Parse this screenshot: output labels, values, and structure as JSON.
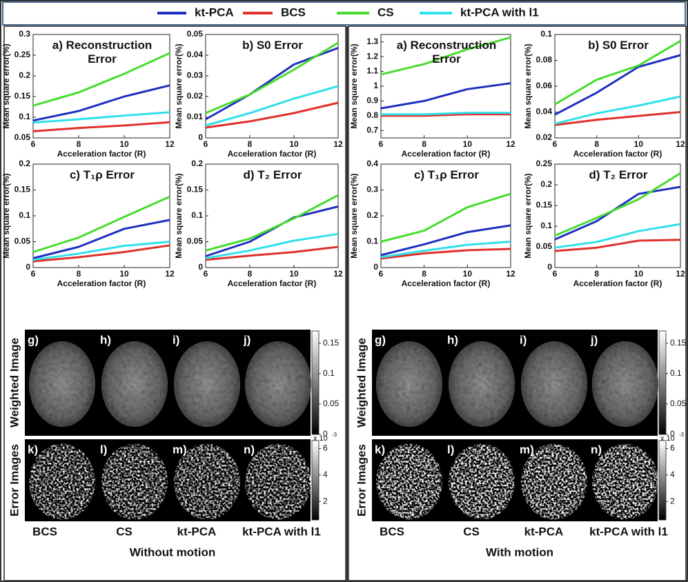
{
  "chart_data": [
    {
      "type": "line",
      "title": "a) Reconstruction Error",
      "xlabel": "Acceleration factor (R)",
      "ylabel": "Mean square error(%)",
      "x": [
        6,
        8,
        10,
        12
      ],
      "xlim": [
        6,
        12
      ],
      "xticks": [
        6,
        8,
        10,
        12
      ],
      "ylim": [
        0.05,
        0.3
      ],
      "yticks": [
        0.05,
        0.1,
        0.15,
        0.2,
        0.25,
        0.3
      ],
      "series": [
        {
          "name": "kt-PCA",
          "color": "#1f2fc0",
          "values": [
            0.092,
            0.115,
            0.15,
            0.177
          ]
        },
        {
          "name": "BCS",
          "color": "#e0302a",
          "values": [
            0.066,
            0.074,
            0.08,
            0.088
          ]
        },
        {
          "name": "CS",
          "color": "#46dc2c",
          "values": [
            0.128,
            0.16,
            0.205,
            0.255
          ]
        },
        {
          "name": "kt-PCA with l1",
          "color": "#30e0ea",
          "values": [
            0.087,
            0.095,
            0.104,
            0.112
          ]
        }
      ]
    },
    {
      "type": "line",
      "title": "b) S0 Error",
      "xlabel": "Acceleration factor (R)",
      "ylabel": "Mean square error(%)",
      "x": [
        6,
        8,
        10,
        12
      ],
      "xlim": [
        6,
        12
      ],
      "xticks": [
        6,
        8,
        10,
        12
      ],
      "ylim": [
        0,
        0.05
      ],
      "yticks": [
        0,
        0.01,
        0.02,
        0.03,
        0.04,
        0.05
      ],
      "series": [
        {
          "name": "kt-PCA",
          "color": "#1f2fc0",
          "values": [
            0.009,
            0.021,
            0.0355,
            0.0435
          ]
        },
        {
          "name": "BCS",
          "color": "#e0302a",
          "values": [
            0.005,
            0.008,
            0.012,
            0.017
          ]
        },
        {
          "name": "CS",
          "color": "#46dc2c",
          "values": [
            0.012,
            0.021,
            0.033,
            0.046
          ]
        },
        {
          "name": "kt-PCA with l1",
          "color": "#30e0ea",
          "values": [
            0.006,
            0.012,
            0.019,
            0.025
          ]
        }
      ]
    },
    {
      "type": "line",
      "title": "c) T₁ρ Error",
      "xlabel": "Acceleration factor (R)",
      "ylabel": "Mean square error(%)",
      "x": [
        6,
        8,
        10,
        12
      ],
      "xlim": [
        6,
        12
      ],
      "xticks": [
        6,
        8,
        10,
        12
      ],
      "ylim": [
        0,
        0.2
      ],
      "yticks": [
        0,
        0.05,
        0.1,
        0.15,
        0.2
      ],
      "series": [
        {
          "name": "kt-PCA",
          "color": "#1f2fc0",
          "values": [
            0.018,
            0.04,
            0.075,
            0.092
          ]
        },
        {
          "name": "BCS",
          "color": "#e0302a",
          "values": [
            0.012,
            0.02,
            0.03,
            0.043
          ]
        },
        {
          "name": "CS",
          "color": "#46dc2c",
          "values": [
            0.03,
            0.058,
            0.098,
            0.137
          ]
        },
        {
          "name": "kt-PCA with l1",
          "color": "#30e0ea",
          "values": [
            0.015,
            0.027,
            0.042,
            0.05
          ]
        }
      ]
    },
    {
      "type": "line",
      "title": "d) T₂ Error",
      "xlabel": "Acceleration factor (R)",
      "ylabel": "Mean square error(%)",
      "x": [
        6,
        8,
        10,
        12
      ],
      "xlim": [
        6,
        12
      ],
      "xticks": [
        6,
        8,
        10,
        12
      ],
      "ylim": [
        0,
        0.2
      ],
      "yticks": [
        0,
        0.05,
        0.1,
        0.15,
        0.2
      ],
      "series": [
        {
          "name": "kt-PCA",
          "color": "#1f2fc0",
          "values": [
            0.022,
            0.05,
            0.097,
            0.118
          ]
        },
        {
          "name": "BCS",
          "color": "#e0302a",
          "values": [
            0.015,
            0.023,
            0.03,
            0.04
          ]
        },
        {
          "name": "CS",
          "color": "#46dc2c",
          "values": [
            0.033,
            0.056,
            0.095,
            0.14
          ]
        },
        {
          "name": "kt-PCA with l1",
          "color": "#30e0ea",
          "values": [
            0.018,
            0.033,
            0.052,
            0.065
          ]
        }
      ]
    },
    {
      "type": "line",
      "title": "a) Reconstruction Error",
      "xlabel": "Acceleration factor (R)",
      "ylabel": "Mean square error(%)",
      "x": [
        6,
        8,
        10,
        12
      ],
      "xlim": [
        6,
        12
      ],
      "xticks": [
        6,
        8,
        10,
        12
      ],
      "ylim": [
        0.65,
        1.35
      ],
      "yticks": [
        0.7,
        0.8,
        0.9,
        1,
        1.1,
        1.2,
        1.3
      ],
      "series": [
        {
          "name": "kt-PCA",
          "color": "#1f2fc0",
          "values": [
            0.85,
            0.9,
            0.98,
            1.02
          ]
        },
        {
          "name": "BCS",
          "color": "#e0302a",
          "values": [
            0.8,
            0.8,
            0.81,
            0.81
          ]
        },
        {
          "name": "CS",
          "color": "#46dc2c",
          "values": [
            1.08,
            1.15,
            1.25,
            1.33
          ]
        },
        {
          "name": "kt-PCA with l1",
          "color": "#30e0ea",
          "values": [
            0.81,
            0.81,
            0.82,
            0.82
          ]
        }
      ]
    },
    {
      "type": "line",
      "title": "b) S0 Error",
      "xlabel": "Acceleration factor (R)",
      "ylabel": "Mean square error(%)",
      "x": [
        6,
        8,
        10,
        12
      ],
      "xlim": [
        6,
        12
      ],
      "xticks": [
        6,
        8,
        10,
        12
      ],
      "ylim": [
        0.02,
        0.1
      ],
      "yticks": [
        0.02,
        0.04,
        0.06,
        0.08,
        0.1
      ],
      "series": [
        {
          "name": "kt-PCA",
          "color": "#1f2fc0",
          "values": [
            0.038,
            0.055,
            0.075,
            0.084
          ]
        },
        {
          "name": "BCS",
          "color": "#e0302a",
          "values": [
            0.03,
            0.034,
            0.037,
            0.04
          ]
        },
        {
          "name": "CS",
          "color": "#46dc2c",
          "values": [
            0.046,
            0.065,
            0.076,
            0.095
          ]
        },
        {
          "name": "kt-PCA with l1",
          "color": "#30e0ea",
          "values": [
            0.031,
            0.039,
            0.045,
            0.052
          ]
        }
      ]
    },
    {
      "type": "line",
      "title": "c) T₁ρ Error",
      "xlabel": "Acceleration factor (R)",
      "ylabel": "Mean square error(%)",
      "x": [
        6,
        8,
        10,
        12
      ],
      "xlim": [
        6,
        12
      ],
      "xticks": [
        6,
        8,
        10,
        12
      ],
      "ylim": [
        0,
        0.4
      ],
      "yticks": [
        0,
        0.1,
        0.2,
        0.3,
        0.4
      ],
      "series": [
        {
          "name": "kt-PCA",
          "color": "#1f2fc0",
          "values": [
            0.048,
            0.09,
            0.137,
            0.163
          ]
        },
        {
          "name": "BCS",
          "color": "#e0302a",
          "values": [
            0.035,
            0.055,
            0.067,
            0.072
          ]
        },
        {
          "name": "CS",
          "color": "#46dc2c",
          "values": [
            0.1,
            0.143,
            0.233,
            0.285
          ]
        },
        {
          "name": "kt-PCA with l1",
          "color": "#30e0ea",
          "values": [
            0.04,
            0.065,
            0.088,
            0.1
          ]
        }
      ]
    },
    {
      "type": "line",
      "title": "d) T₂ Error",
      "xlabel": "Acceleration factor (R)",
      "ylabel": "Mean square error(%)",
      "x": [
        6,
        8,
        10,
        12
      ],
      "xlim": [
        6,
        12
      ],
      "xticks": [
        6,
        8,
        10,
        12
      ],
      "ylim": [
        0,
        0.25
      ],
      "yticks": [
        0,
        0.05,
        0.1,
        0.15,
        0.2,
        0.25
      ],
      "series": [
        {
          "name": "kt-PCA",
          "color": "#1f2fc0",
          "values": [
            0.068,
            0.112,
            0.178,
            0.195
          ]
        },
        {
          "name": "BCS",
          "color": "#e0302a",
          "values": [
            0.04,
            0.048,
            0.065,
            0.067
          ]
        },
        {
          "name": "CS",
          "color": "#46dc2c",
          "values": [
            0.077,
            0.12,
            0.165,
            0.228
          ]
        },
        {
          "name": "kt-PCA with l1",
          "color": "#30e0ea",
          "values": [
            0.048,
            0.062,
            0.088,
            0.105
          ]
        }
      ]
    }
  ],
  "image_panels": [
    {
      "caption": "Without motion",
      "row_labels": [
        "Weighted Image",
        "Error Images"
      ],
      "weighted_labels": [
        "g)",
        "h)",
        "i)",
        "j)"
      ],
      "error_labels": [
        "k)",
        "l)",
        "m)",
        "n)"
      ],
      "column_labels": [
        "BCS",
        "CS",
        "kt-PCA",
        "kt-PCA with l1"
      ],
      "colorbars": [
        {
          "clim": [
            0,
            0.17
          ],
          "ticks": [
            0,
            0.05,
            0.1,
            0.15
          ]
        },
        {
          "clim": [
            0.6,
            6.6
          ],
          "ticks": [
            2,
            4,
            6
          ],
          "scale": {
            "base": "x 10",
            "exponent": "-3"
          }
        }
      ]
    },
    {
      "caption": "With motion",
      "row_labels": [
        "Weighted Image",
        "Error Images"
      ],
      "weighted_labels": [
        "g)",
        "h)",
        "i)",
        "j)"
      ],
      "error_labels": [
        "k)",
        "l)",
        "m)",
        "n)"
      ],
      "column_labels": [
        "BCS",
        "CS",
        "kt-PCA",
        "kt-PCA with l1"
      ],
      "colorbars": [
        {
          "clim": [
            0,
            0.17
          ],
          "ticks": [
            0,
            0.05,
            0.1,
            0.15
          ]
        },
        {
          "clim": [
            0.6,
            6.6
          ],
          "ticks": [
            2,
            4,
            6
          ],
          "scale": {
            "base": "x 10",
            "exponent": "-3"
          }
        }
      ]
    }
  ]
}
